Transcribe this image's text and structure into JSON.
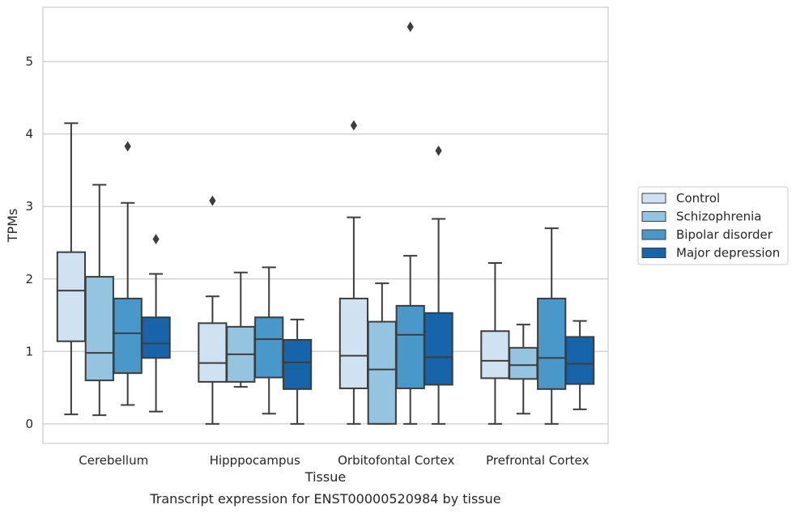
{
  "caption": "Transcript expression for ENST00000520984 by tissue",
  "chart_data": {
    "type": "box",
    "title": "",
    "xlabel": "Tissue",
    "ylabel": "TPMs",
    "ylim": [
      -0.27,
      5.75
    ],
    "yticks": [
      0,
      1,
      2,
      3,
      4,
      5
    ],
    "grid": "horizontal",
    "legend_position": "right",
    "categories": [
      "Cerebellum",
      "Hipppocampus",
      "Orbitofontal Cortex",
      "Prefrontal Cortex"
    ],
    "series": [
      {
        "name": "Control",
        "color": "#d0e1f2",
        "boxes": [
          {
            "whisker_low": 0.13,
            "q1": 1.14,
            "median": 1.84,
            "q3": 2.37,
            "whisker_high": 4.15,
            "outliers": []
          },
          {
            "whisker_low": 0.0,
            "q1": 0.58,
            "median": 0.84,
            "q3": 1.39,
            "whisker_high": 1.76,
            "outliers": [
              3.08
            ]
          },
          {
            "whisker_low": 0.0,
            "q1": 0.49,
            "median": 0.94,
            "q3": 1.73,
            "whisker_high": 2.85,
            "outliers": [
              4.12
            ]
          },
          {
            "whisker_low": 0.0,
            "q1": 0.63,
            "median": 0.87,
            "q3": 1.28,
            "whisker_high": 2.22,
            "outliers": []
          }
        ]
      },
      {
        "name": "Schizophrenia",
        "color": "#94c4df",
        "boxes": [
          {
            "whisker_low": 0.12,
            "q1": 0.6,
            "median": 0.98,
            "q3": 2.03,
            "whisker_high": 3.3,
            "outliers": []
          },
          {
            "whisker_low": 0.51,
            "q1": 0.58,
            "median": 0.96,
            "q3": 1.34,
            "whisker_high": 2.09,
            "outliers": []
          },
          {
            "whisker_low": 0.0,
            "q1": 0.0,
            "median": 0.75,
            "q3": 1.41,
            "whisker_high": 1.94,
            "outliers": []
          },
          {
            "whisker_low": 0.14,
            "q1": 0.62,
            "median": 0.81,
            "q3": 1.05,
            "whisker_high": 1.37,
            "outliers": []
          }
        ]
      },
      {
        "name": "Bipolar disorder",
        "color": "#4a98c9",
        "boxes": [
          {
            "whisker_low": 0.26,
            "q1": 0.7,
            "median": 1.25,
            "q3": 1.73,
            "whisker_high": 3.05,
            "outliers": [
              3.83
            ]
          },
          {
            "whisker_low": 0.14,
            "q1": 0.64,
            "median": 1.17,
            "q3": 1.47,
            "whisker_high": 2.16,
            "outliers": []
          },
          {
            "whisker_low": 0.0,
            "q1": 0.49,
            "median": 1.23,
            "q3": 1.63,
            "whisker_high": 2.32,
            "outliers": [
              5.48
            ]
          },
          {
            "whisker_low": 0.0,
            "q1": 0.48,
            "median": 0.91,
            "q3": 1.73,
            "whisker_high": 2.7,
            "outliers": []
          }
        ]
      },
      {
        "name": "Major depression",
        "color": "#1764ab",
        "boxes": [
          {
            "whisker_low": 0.17,
            "q1": 0.91,
            "median": 1.11,
            "q3": 1.47,
            "whisker_high": 2.07,
            "outliers": [
              2.55
            ]
          },
          {
            "whisker_low": 0.0,
            "q1": 0.48,
            "median": 0.85,
            "q3": 1.16,
            "whisker_high": 1.44,
            "outliers": []
          },
          {
            "whisker_low": 0.0,
            "q1": 0.54,
            "median": 0.92,
            "q3": 1.53,
            "whisker_high": 2.83,
            "outliers": [
              3.77
            ]
          },
          {
            "whisker_low": 0.2,
            "q1": 0.55,
            "median": 0.83,
            "q3": 1.2,
            "whisker_high": 1.42,
            "outliers": []
          }
        ]
      }
    ]
  }
}
